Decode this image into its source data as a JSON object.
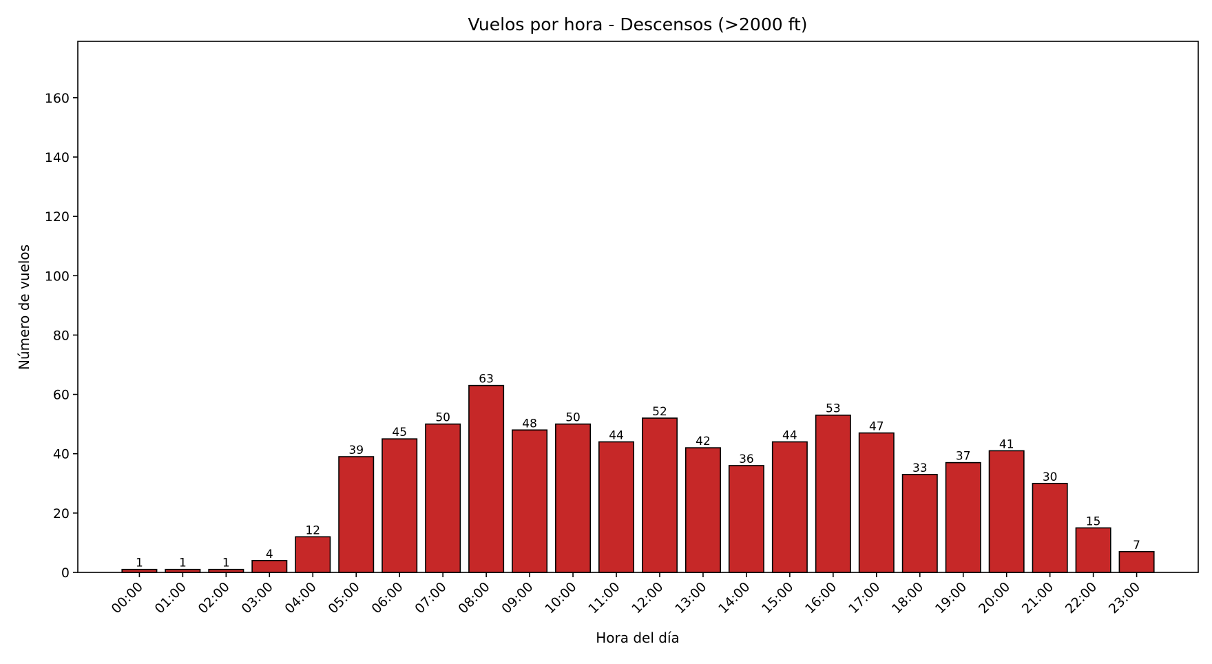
{
  "chart_data": {
    "type": "bar",
    "title": "Vuelos por hora - Descensos (>2000 ft)",
    "xlabel": "Hora del día",
    "ylabel": "Número de vuelos",
    "categories": [
      "00:00",
      "01:00",
      "02:00",
      "03:00",
      "04:00",
      "05:00",
      "06:00",
      "07:00",
      "08:00",
      "09:00",
      "10:00",
      "11:00",
      "12:00",
      "13:00",
      "14:00",
      "15:00",
      "16:00",
      "17:00",
      "18:00",
      "19:00",
      "20:00",
      "21:00",
      "22:00",
      "23:00"
    ],
    "values": [
      1,
      1,
      1,
      4,
      12,
      39,
      45,
      50,
      63,
      48,
      50,
      44,
      52,
      42,
      36,
      44,
      53,
      47,
      33,
      37,
      41,
      30,
      15,
      7
    ],
    "ylim": [
      0,
      179
    ],
    "yticks": [
      0,
      20,
      40,
      60,
      80,
      100,
      120,
      140,
      160
    ],
    "bar_color": "#c62828",
    "edge_color": "#000000",
    "grid": false,
    "data_labels": true
  }
}
